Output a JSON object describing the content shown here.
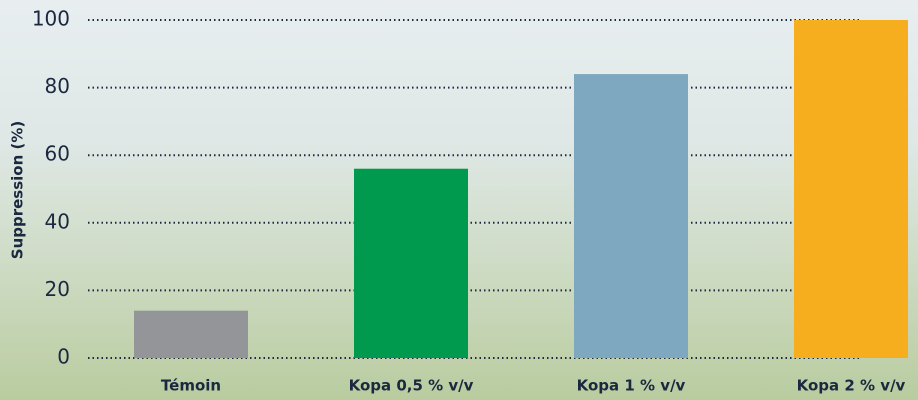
{
  "chart_data": {
    "type": "bar",
    "y_label": "Suppression (%)",
    "categories": [
      "Témoin",
      "Kopa 0,5 % v/v",
      "Kopa 1 % v/v",
      "Kopa 2 % v/v"
    ],
    "values": [
      14,
      56,
      84,
      100
    ],
    "colors": [
      "#939598",
      "#009a4e",
      "#7ea8bf",
      "#f6ae1e"
    ],
    "ylim": [
      0,
      100
    ],
    "yticks": [
      0,
      20,
      40,
      60,
      80,
      100
    ],
    "grid": true
  }
}
